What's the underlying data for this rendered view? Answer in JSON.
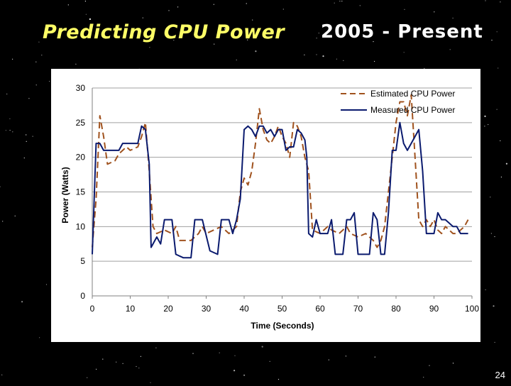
{
  "slide": {
    "title": "Predicting CPU Power",
    "era": "2005 - Present",
    "page_number": "24"
  },
  "colors": {
    "background": "#000000",
    "title": "#ffff66",
    "estimated": "#a0521e",
    "measured": "#0a1a6e"
  },
  "chart_data": {
    "type": "line",
    "xlabel": "Time (Seconds)",
    "ylabel": "Power (Watts)",
    "xlim": [
      0,
      100
    ],
    "ylim": [
      0,
      30
    ],
    "x_ticks": [
      0,
      10,
      20,
      30,
      40,
      50,
      60,
      70,
      80,
      90,
      100
    ],
    "y_ticks": [
      0,
      5,
      10,
      15,
      20,
      25,
      30
    ],
    "grid": "horizontal",
    "legend_position": "top-right",
    "series": [
      {
        "name": "Estimated CPU Power",
        "style": "dashed",
        "points": [
          [
            0,
            7
          ],
          [
            1,
            14
          ],
          [
            2,
            26
          ],
          [
            3,
            23
          ],
          [
            4,
            19
          ],
          [
            6,
            19.5
          ],
          [
            7,
            20.5
          ],
          [
            9,
            21.5
          ],
          [
            10,
            21
          ],
          [
            12,
            21.5
          ],
          [
            13,
            23
          ],
          [
            14,
            25
          ],
          [
            15,
            18
          ],
          [
            16,
            10
          ],
          [
            17,
            9
          ],
          [
            19,
            9.5
          ],
          [
            21,
            9
          ],
          [
            22,
            10
          ],
          [
            23,
            8
          ],
          [
            26,
            8
          ],
          [
            28,
            9
          ],
          [
            29,
            10
          ],
          [
            30,
            9
          ],
          [
            32,
            9.5
          ],
          [
            34,
            10
          ],
          [
            36,
            9
          ],
          [
            38,
            10
          ],
          [
            39,
            15
          ],
          [
            40,
            17
          ],
          [
            41,
            16
          ],
          [
            42,
            18
          ],
          [
            43,
            22
          ],
          [
            44,
            27
          ],
          [
            45,
            24
          ],
          [
            46,
            22.5
          ],
          [
            47,
            22
          ],
          [
            48,
            23
          ],
          [
            49,
            24.5
          ],
          [
            50,
            23
          ],
          [
            51,
            22
          ],
          [
            52,
            20
          ],
          [
            53,
            25
          ],
          [
            54,
            24.5
          ],
          [
            55,
            23
          ],
          [
            56,
            20
          ],
          [
            57,
            18
          ],
          [
            58,
            9.5
          ],
          [
            60,
            9
          ],
          [
            62,
            10
          ],
          [
            63,
            9.5
          ],
          [
            65,
            9
          ],
          [
            67,
            10
          ],
          [
            68,
            9
          ],
          [
            70,
            8.5
          ],
          [
            72,
            9
          ],
          [
            74,
            8
          ],
          [
            75,
            7
          ],
          [
            76,
            8
          ],
          [
            77,
            10
          ],
          [
            78,
            15
          ],
          [
            79,
            20
          ],
          [
            80,
            25
          ],
          [
            81,
            28
          ],
          [
            82,
            28
          ],
          [
            83,
            26
          ],
          [
            84,
            29
          ],
          [
            85,
            20
          ],
          [
            86,
            11
          ],
          [
            87,
            10
          ],
          [
            88,
            11
          ],
          [
            89,
            10
          ],
          [
            90,
            11
          ],
          [
            91,
            9.5
          ],
          [
            92,
            9
          ],
          [
            93,
            10
          ],
          [
            94,
            9.5
          ],
          [
            95,
            9
          ],
          [
            96,
            9
          ],
          [
            97,
            9.5
          ],
          [
            98,
            10
          ],
          [
            99,
            11
          ]
        ]
      },
      {
        "name": "Measured CPU Power",
        "style": "solid",
        "points": [
          [
            0,
            6
          ],
          [
            0.5,
            14
          ],
          [
            1,
            22
          ],
          [
            2,
            22
          ],
          [
            3,
            21
          ],
          [
            5,
            21
          ],
          [
            7,
            21
          ],
          [
            8,
            22
          ],
          [
            11,
            22
          ],
          [
            12,
            22
          ],
          [
            13,
            24.5
          ],
          [
            14,
            24
          ],
          [
            15,
            19
          ],
          [
            15.5,
            7
          ],
          [
            16,
            7.5
          ],
          [
            17,
            8.5
          ],
          [
            18,
            7.5
          ],
          [
            19,
            11
          ],
          [
            21,
            11
          ],
          [
            22,
            6
          ],
          [
            24,
            5.5
          ],
          [
            26,
            5.5
          ],
          [
            27,
            11
          ],
          [
            29,
            11
          ],
          [
            31,
            6.5
          ],
          [
            33,
            6
          ],
          [
            34,
            11
          ],
          [
            36,
            11
          ],
          [
            37,
            9
          ],
          [
            38,
            11
          ],
          [
            39,
            14
          ],
          [
            40,
            24
          ],
          [
            41,
            24.5
          ],
          [
            42,
            24
          ],
          [
            43,
            23
          ],
          [
            44,
            24.5
          ],
          [
            45,
            24.5
          ],
          [
            46,
            23.5
          ],
          [
            47,
            24
          ],
          [
            48,
            23
          ],
          [
            49,
            24
          ],
          [
            50,
            24
          ],
          [
            51,
            21
          ],
          [
            52,
            21.5
          ],
          [
            53,
            21.5
          ],
          [
            54,
            24
          ],
          [
            55,
            23.5
          ],
          [
            56,
            22.5
          ],
          [
            56.5,
            20
          ],
          [
            57,
            9
          ],
          [
            58,
            8.5
          ],
          [
            59,
            11
          ],
          [
            60,
            9
          ],
          [
            61,
            9
          ],
          [
            62,
            9
          ],
          [
            63,
            11
          ],
          [
            64,
            6
          ],
          [
            66,
            6
          ],
          [
            67,
            11
          ],
          [
            68,
            11
          ],
          [
            69,
            12
          ],
          [
            70,
            6
          ],
          [
            73,
            6
          ],
          [
            74,
            12
          ],
          [
            75,
            11
          ],
          [
            76,
            6
          ],
          [
            77,
            6
          ],
          [
            78,
            12
          ],
          [
            79,
            21
          ],
          [
            80,
            21
          ],
          [
            81,
            25
          ],
          [
            82,
            22
          ],
          [
            83,
            21
          ],
          [
            84,
            22
          ],
          [
            85,
            23
          ],
          [
            86,
            24
          ],
          [
            87,
            18
          ],
          [
            88,
            9
          ],
          [
            90,
            9
          ],
          [
            91,
            12
          ],
          [
            92,
            11
          ],
          [
            93,
            11
          ],
          [
            94,
            10.5
          ],
          [
            95,
            10
          ],
          [
            96,
            10
          ],
          [
            97,
            9
          ],
          [
            98,
            9
          ],
          [
            99,
            9
          ]
        ]
      }
    ]
  }
}
